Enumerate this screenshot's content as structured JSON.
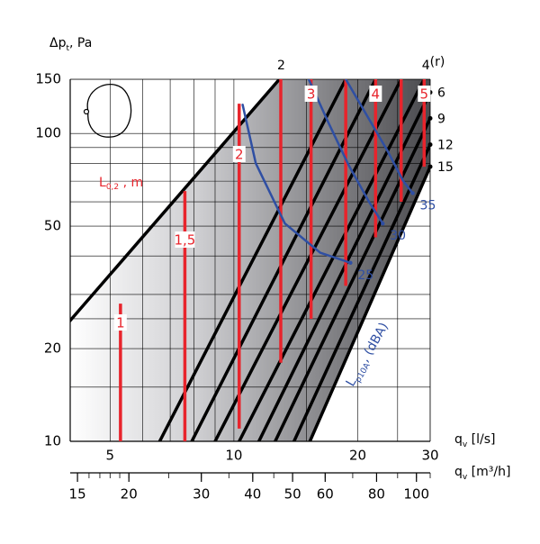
{
  "chart_data": {
    "type": "line",
    "title": "",
    "ylabel": "Δp_t, Pa",
    "xlabel_top": "q_v [l/s]",
    "xlabel_bottom": "q_v [m³/h]",
    "scale": "log-log",
    "grid": true,
    "x_ls": {
      "range": [
        4,
        30
      ],
      "ticks": [
        {
          "value": 5,
          "label": "5"
        },
        {
          "value": 10,
          "label": "10"
        },
        {
          "value": 20,
          "label": "20"
        },
        {
          "value": 30,
          "label": "30"
        }
      ]
    },
    "x_m3h": {
      "ticks": [
        {
          "value": 15,
          "label": "15"
        },
        {
          "value": 20,
          "label": "20"
        },
        {
          "value": 30,
          "label": "30"
        },
        {
          "value": 40,
          "label": "40"
        },
        {
          "value": 50,
          "label": "50"
        },
        {
          "value": 60,
          "label": "60"
        },
        {
          "value": 80,
          "label": "80"
        },
        {
          "value": 100,
          "label": "100"
        }
      ]
    },
    "y": {
      "range": [
        10,
        150
      ],
      "ticks": [
        {
          "value": 10,
          "label": "10"
        },
        {
          "value": 20,
          "label": "20"
        },
        {
          "value": 50,
          "label": "50"
        },
        {
          "value": 100,
          "label": "100"
        },
        {
          "value": 150,
          "label": "150"
        }
      ]
    },
    "r_label": "(r)",
    "damper_lines": [
      {
        "label": "2",
        "points": [
          [
            3.2,
            17.5
          ],
          [
            12.9,
            150
          ]
        ]
      },
      {
        "label": "",
        "points": [
          [
            6.6,
            10
          ],
          [
            18.7,
            150
          ]
        ]
      },
      {
        "label": "",
        "points": [
          [
            7.9,
            10
          ],
          [
            22.1,
            150
          ]
        ]
      },
      {
        "label": "",
        "points": [
          [
            9.0,
            10
          ],
          [
            25.5,
            150
          ]
        ]
      },
      {
        "label": "4",
        "points": [
          [
            10.3,
            10
          ],
          [
            29.0,
            150
          ]
        ]
      },
      {
        "label": "6",
        "points": [
          [
            11.5,
            10
          ],
          [
            30.0,
            136
          ]
        ]
      },
      {
        "label": "9",
        "points": [
          [
            12.6,
            10
          ],
          [
            30.0,
            112
          ]
        ]
      },
      {
        "label": "12",
        "points": [
          [
            14.0,
            10
          ],
          [
            30.0,
            92
          ]
        ]
      },
      {
        "label": "15",
        "points": [
          [
            15.3,
            10
          ],
          [
            30.0,
            78
          ]
        ]
      }
    ],
    "throw_lines": [
      {
        "label": "1",
        "x": 5.3,
        "y_range": [
          10,
          28
        ]
      },
      {
        "label": "1,5",
        "x": 7.6,
        "y_range": [
          10,
          65
        ]
      },
      {
        "label": "2",
        "x": 10.3,
        "y_range": [
          11,
          125
        ]
      },
      {
        "label": "",
        "x": 13.0,
        "y_range": [
          18,
          150
        ]
      },
      {
        "label": "3",
        "x": 15.4,
        "y_range": [
          25,
          150
        ]
      },
      {
        "label": "",
        "x": 18.7,
        "y_range": [
          32,
          150
        ]
      },
      {
        "label": "4",
        "x": 22.1,
        "y_range": [
          46,
          150
        ]
      },
      {
        "label": "",
        "x": 25.5,
        "y_range": [
          60,
          150
        ]
      },
      {
        "label": "5",
        "x": 29.0,
        "y_range": [
          78,
          150
        ]
      }
    ],
    "throw_label": "L₀,₂ , m",
    "throw_label_value": {
      "main": "L",
      "sub": "0,2",
      "tail": ", m"
    },
    "noise_curves": [
      {
        "label": "25",
        "points": [
          [
            10.5,
            124
          ],
          [
            11.3,
            80
          ],
          [
            13.3,
            51
          ],
          [
            16.2,
            41
          ],
          [
            19.2,
            38
          ]
        ]
      },
      {
        "label": "30",
        "points": [
          [
            15.2,
            150
          ],
          [
            17.0,
            108
          ],
          [
            19.0,
            79
          ],
          [
            21.3,
            60
          ],
          [
            23.0,
            51
          ]
        ]
      },
      {
        "label": "35",
        "points": [
          [
            18.7,
            150
          ],
          [
            21.0,
            115
          ],
          [
            23.6,
            88
          ],
          [
            25.8,
            70
          ],
          [
            27.2,
            64
          ]
        ]
      }
    ],
    "noise_axis_label": {
      "main": "L",
      "sub": "p10A",
      "tail": ", (dBA)"
    },
    "colors": {
      "damper": "#000000",
      "throw": "#e8242c",
      "noise": "#2f4fa3",
      "grid": "#000000"
    }
  }
}
